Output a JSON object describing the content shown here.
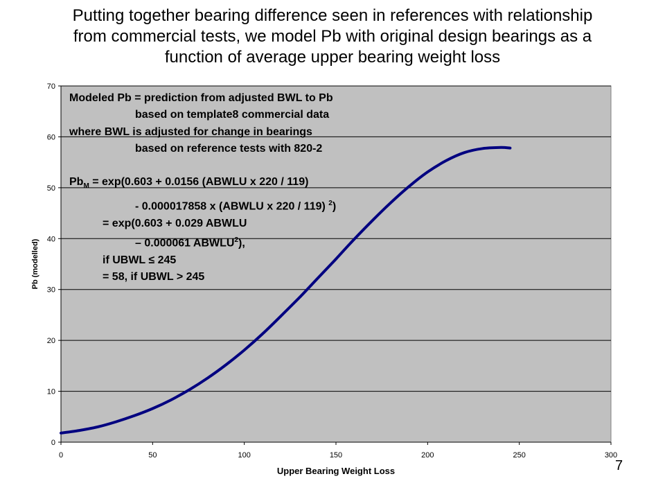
{
  "slide": {
    "title_lines": [
      "Putting together bearing difference seen in references with relationship",
      "from commercial tests, we model Pb with original design bearings as a",
      "function of average upper bearing weight loss"
    ],
    "page_number": "7"
  },
  "annotation": {
    "line1": "Modeled Pb = prediction from adjusted BWL to Pb",
    "line2": "based on template8 commercial data",
    "line3": "where BWL is adjusted for change in bearings",
    "line4": "based on reference tests with 820-2",
    "eq1_pre": "Pb",
    "eq1_sub": "M",
    "eq1_post": " = exp(0.603 + 0.0156 (ABWLU  x 220 / 119)",
    "eq2_pre": "- 0.000017858 x (ABWLU  x 220 / 119) ",
    "eq2_sup": "2",
    "eq2_post": ")",
    "eq3": "= exp(0.603 + 0.029 ABWLU",
    "eq4_pre": "– 0.000061 ABWLU",
    "eq4_sup": "2",
    "eq4_post": "),",
    "eq5": "if UBWL ≤ 245",
    "eq6": "= 58, if UBWL > 245"
  },
  "chart_data": {
    "type": "line",
    "title": "",
    "xlabel": "Upper Bearing Weight Loss",
    "ylabel": "Pb (modelled)",
    "xlim": [
      0,
      300
    ],
    "ylim": [
      0,
      70
    ],
    "x_ticks": [
      0,
      50,
      100,
      150,
      200,
      250,
      300
    ],
    "y_ticks": [
      0,
      10,
      20,
      30,
      40,
      50,
      60,
      70
    ],
    "grid": "horizontal",
    "plot_background": "#c0c0c0",
    "series": [
      {
        "color": "#000080",
        "x": [
          0,
          10,
          20,
          30,
          40,
          50,
          60,
          70,
          80,
          90,
          100,
          110,
          120,
          130,
          140,
          150,
          160,
          170,
          180,
          190,
          200,
          210,
          220,
          230,
          240,
          245
        ],
        "y": [
          1.8,
          2.3,
          3.0,
          4.0,
          5.2,
          6.6,
          8.3,
          10.3,
          12.6,
          15.2,
          18.1,
          21.3,
          24.8,
          28.4,
          32.2,
          36.0,
          39.9,
          43.6,
          47.1,
          50.3,
          53.1,
          55.3,
          56.9,
          57.7,
          57.9,
          57.8
        ]
      }
    ]
  }
}
